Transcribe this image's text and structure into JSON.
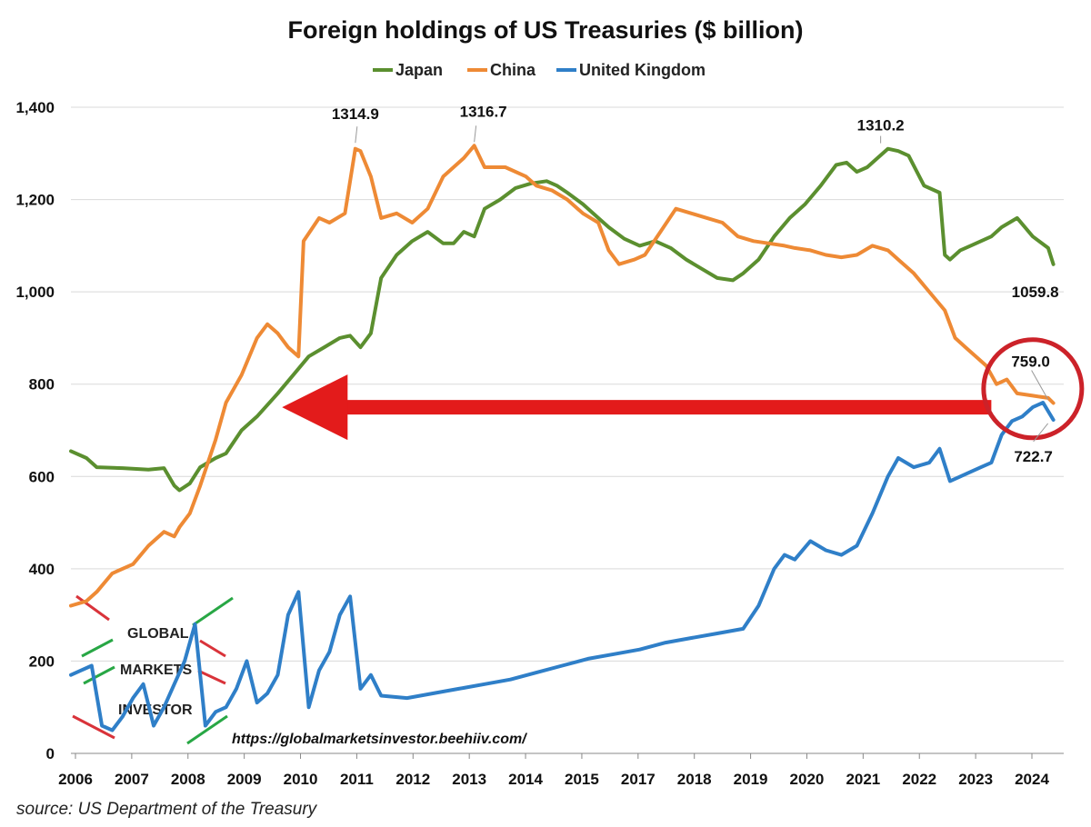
{
  "chart_data": {
    "type": "line",
    "title": "Foreign holdings of US Treasuries ($ billion)",
    "xlabel": "",
    "ylabel": "",
    "ylim": [
      0,
      1400
    ],
    "xlim": [
      2006,
      2025.2
    ],
    "grid": true,
    "legend_position": "top-center",
    "y_ticks": [
      "0",
      "200",
      "400",
      "600",
      "800",
      "1,000",
      "1,200",
      "1,400"
    ],
    "y_tick_values": [
      0,
      200,
      400,
      600,
      800,
      1000,
      1200,
      1400
    ],
    "x_ticks": [
      "2006",
      "2007",
      "2008",
      "2009",
      "2010",
      "2011",
      "2012",
      "2013",
      "2014",
      "2015",
      "2017",
      "2018",
      "2019",
      "2020",
      "2021",
      "2022",
      "2023",
      "2024"
    ],
    "series": [
      {
        "name": "Japan",
        "color": "#5b8f2f",
        "x": [
          2006.0,
          2006.3,
          2006.5,
          2007.0,
          2007.5,
          2007.8,
          2008.0,
          2008.1,
          2008.3,
          2008.5,
          2008.8,
          2009.0,
          2009.3,
          2009.6,
          2010.0,
          2010.3,
          2010.6,
          2010.9,
          2011.2,
          2011.4,
          2011.6,
          2011.8,
          2012.0,
          2012.3,
          2012.6,
          2012.9,
          2013.2,
          2013.4,
          2013.6,
          2013.8,
          2014.0,
          2014.3,
          2014.6,
          2014.9,
          2015.2,
          2015.4,
          2015.6,
          2015.9,
          2016.2,
          2016.4,
          2016.7,
          2017.0,
          2017.3,
          2017.6,
          2017.9,
          2018.2,
          2018.5,
          2018.8,
          2019.0,
          2019.3,
          2019.6,
          2019.9,
          2020.2,
          2020.5,
          2020.8,
          2021.0,
          2021.2,
          2021.4,
          2021.6,
          2021.8,
          2022.0,
          2022.2,
          2022.5,
          2022.8,
          2022.9,
          2023.0,
          2023.2,
          2023.4,
          2023.6,
          2023.8,
          2024.0,
          2024.3,
          2024.6,
          2024.9,
          2025.0
        ],
        "values": [
          655,
          640,
          620,
          618,
          615,
          618,
          580,
          570,
          585,
          620,
          640,
          650,
          700,
          730,
          780,
          820,
          860,
          880,
          900,
          905,
          880,
          910,
          1030,
          1080,
          1110,
          1130,
          1105,
          1105,
          1130,
          1120,
          1180,
          1200,
          1225,
          1235,
          1240,
          1230,
          1215,
          1190,
          1160,
          1140,
          1115,
          1100,
          1110,
          1095,
          1070,
          1050,
          1030,
          1025,
          1040,
          1070,
          1120,
          1160,
          1190,
          1230,
          1275,
          1280,
          1260,
          1270,
          1290,
          1310,
          1305,
          1295,
          1230,
          1215,
          1080,
          1070,
          1090,
          1100,
          1110,
          1120,
          1140,
          1160,
          1120,
          1095,
          1059.8
        ]
      },
      {
        "name": "China",
        "color": "#ee8a35",
        "x": [
          2006.0,
          2006.3,
          2006.5,
          2006.8,
          2007.2,
          2007.5,
          2007.8,
          2008.0,
          2008.1,
          2008.3,
          2008.5,
          2008.8,
          2009.0,
          2009.3,
          2009.6,
          2009.8,
          2010.0,
          2010.2,
          2010.4,
          2010.5,
          2010.8,
          2011.0,
          2011.3,
          2011.5,
          2011.6,
          2011.8,
          2012.0,
          2012.3,
          2012.6,
          2012.9,
          2013.2,
          2013.4,
          2013.6,
          2013.8,
          2014.0,
          2014.4,
          2014.8,
          2015.0,
          2015.3,
          2015.6,
          2015.9,
          2016.2,
          2016.4,
          2016.6,
          2016.9,
          2017.1,
          2017.4,
          2017.7,
          2018.0,
          2018.3,
          2018.6,
          2018.9,
          2019.2,
          2019.5,
          2019.8,
          2020.0,
          2020.3,
          2020.6,
          2020.9,
          2021.2,
          2021.5,
          2021.8,
          2022.0,
          2022.3,
          2022.6,
          2022.9,
          2023.1,
          2023.3,
          2023.5,
          2023.7,
          2023.9,
          2024.1,
          2024.3,
          2024.6,
          2024.9,
          2025.0
        ],
        "values": [
          320,
          330,
          350,
          390,
          410,
          450,
          480,
          470,
          490,
          520,
          580,
          680,
          760,
          820,
          900,
          930,
          910,
          880,
          860,
          1110,
          1160,
          1150,
          1170,
          1310,
          1305,
          1250,
          1160,
          1170,
          1150,
          1180,
          1250,
          1270,
          1290,
          1316.7,
          1270,
          1270,
          1250,
          1230,
          1220,
          1200,
          1170,
          1150,
          1090,
          1060,
          1070,
          1080,
          1130,
          1180,
          1170,
          1160,
          1150,
          1120,
          1110,
          1105,
          1100,
          1095,
          1090,
          1080,
          1075,
          1080,
          1100,
          1090,
          1070,
          1040,
          1000,
          960,
          900,
          880,
          860,
          840,
          800,
          810,
          780,
          775,
          770,
          759.0
        ]
      },
      {
        "name": "United Kingdom",
        "color": "#2f7fc8",
        "x": [
          2006.0,
          2006.2,
          2006.4,
          2006.6,
          2006.8,
          2007.0,
          2007.2,
          2007.4,
          2007.6,
          2007.8,
          2008.0,
          2008.2,
          2008.4,
          2008.6,
          2008.8,
          2009.0,
          2009.2,
          2009.4,
          2009.6,
          2009.8,
          2010.0,
          2010.2,
          2010.4,
          2010.6,
          2010.8,
          2011.0,
          2011.2,
          2011.4,
          2011.6,
          2011.8,
          2012.0,
          2012.5,
          2013.0,
          2013.5,
          2014.0,
          2014.5,
          2015.0,
          2015.5,
          2016.0,
          2016.5,
          2017.0,
          2017.5,
          2018.0,
          2018.5,
          2019.0,
          2019.3,
          2019.6,
          2019.8,
          2020.0,
          2020.3,
          2020.6,
          2020.9,
          2021.2,
          2021.5,
          2021.8,
          2022.0,
          2022.3,
          2022.6,
          2022.8,
          2023.0,
          2023.2,
          2023.4,
          2023.6,
          2023.8,
          2024.0,
          2024.2,
          2024.4,
          2024.6,
          2024.8,
          2025.0
        ],
        "values": [
          170,
          180,
          190,
          60,
          50,
          80,
          120,
          150,
          60,
          100,
          150,
          200,
          280,
          60,
          90,
          100,
          140,
          200,
          110,
          130,
          170,
          300,
          350,
          100,
          180,
          220,
          300,
          340,
          140,
          170,
          125,
          120,
          130,
          140,
          150,
          160,
          175,
          190,
          205,
          215,
          225,
          240,
          250,
          260,
          270,
          320,
          400,
          430,
          420,
          460,
          440,
          430,
          450,
          520,
          600,
          640,
          620,
          630,
          660,
          590,
          600,
          610,
          620,
          630,
          690,
          720,
          730,
          750,
          760,
          722.7
        ]
      }
    ],
    "annotations": [
      {
        "text": "1314.9",
        "x": 2011.5,
        "y": 1314.9
      },
      {
        "text": "1316.7",
        "x": 2013.8,
        "y": 1316.7
      },
      {
        "text": "1310.2",
        "x": 2021.8,
        "y": 1310.2
      },
      {
        "text": "1059.8",
        "x": 2025.0,
        "y": 1059.8
      },
      {
        "text": "759.0",
        "x": 2025.0,
        "y": 759.0
      },
      {
        "text": "722.7",
        "x": 2025.0,
        "y": 722.7
      }
    ],
    "arrow": {
      "from_x": 2023.8,
      "to_x": 2010.5,
      "y": 750,
      "color": "#e31b1b"
    },
    "highlight_circle_color": "#cc2229"
  },
  "watermark": {
    "global": "GLOBAL",
    "markets": "MARKETS",
    "investor": "INVESTOR",
    "url": "https://globalmarketsinvestor.beehiiv.com/"
  },
  "source": "source: US Department of the Treasury"
}
